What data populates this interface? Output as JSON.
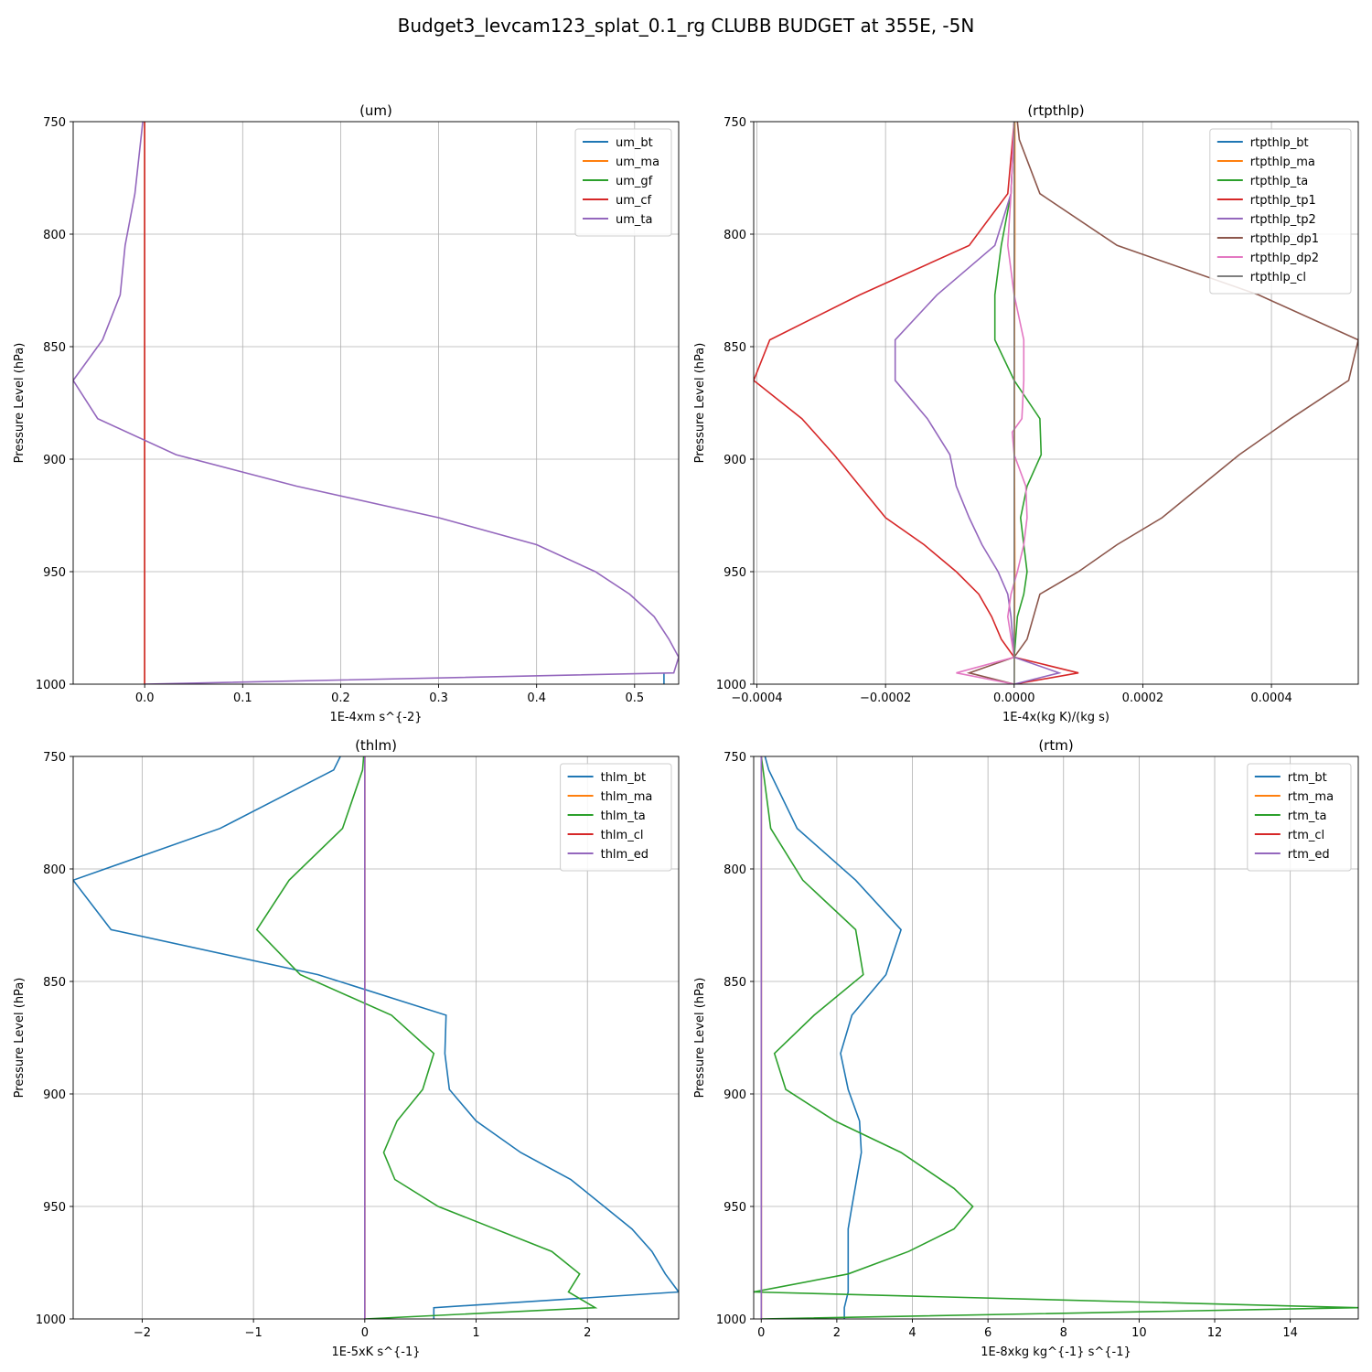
{
  "title": "Budget3_levcam123_splat_0.1_rg CLUBB BUDGET at 355E, -5N",
  "chart_data": [
    {
      "type": "line",
      "title": "(um)",
      "xlabel": "1E-4xm s^{-2}",
      "ylabel": "Pressure Level (hPa)",
      "xlim": [
        -0.073,
        0.545
      ],
      "ylim": [
        1000,
        750
      ],
      "y_inverted": true,
      "grid": true,
      "legend_position": "top-right",
      "xticks": [
        0.0,
        0.1,
        0.2,
        0.3,
        0.4,
        0.5
      ],
      "xtick_labels": [
        "0.0",
        "0.1",
        "0.2",
        "0.3",
        "0.4",
        "0.5"
      ],
      "yticks": [
        750,
        800,
        850,
        900,
        950,
        1000
      ],
      "series": [
        {
          "name": "um_bt",
          "color": "#1f77b4",
          "x": [
            0.53,
            0.53
          ],
          "y": [
            995,
            1000
          ]
        },
        {
          "name": "um_ma",
          "color": "#ff7f0e",
          "x": [
            0,
            0
          ],
          "y": [
            750,
            1000
          ]
        },
        {
          "name": "um_gf",
          "color": "#2ca02c",
          "x": [
            0,
            0
          ],
          "y": [
            750,
            1000
          ]
        },
        {
          "name": "um_cf",
          "color": "#d62728",
          "x": [
            0,
            0
          ],
          "y": [
            750,
            1000
          ]
        },
        {
          "name": "um_ta",
          "color": "#9467bd",
          "x": [
            -0.002,
            -0.01,
            -0.02,
            -0.025,
            -0.043,
            -0.073,
            -0.048,
            0.032,
            0.155,
            0.3,
            0.4,
            0.46,
            0.495,
            0.52,
            0.535,
            0.545,
            0.54,
            0.0
          ],
          "y": [
            750,
            782,
            805,
            827,
            847,
            865,
            882,
            898,
            912,
            926,
            938,
            950,
            960,
            970,
            980,
            988,
            995,
            1000
          ]
        }
      ]
    },
    {
      "type": "line",
      "title": "(rtpthlp)",
      "xlabel": "1E-4x(kg K)/(kg s)",
      "ylabel": "Pressure Level (hPa)",
      "xlim": [
        -0.000405,
        0.000535
      ],
      "ylim": [
        1000,
        750
      ],
      "y_inverted": true,
      "grid": true,
      "legend_position": "top-right",
      "xticks": [
        -0.0004,
        -0.0002,
        0.0,
        0.0002,
        0.0004
      ],
      "xtick_labels": [
        "−0.0004",
        "−0.0002",
        "0.0000",
        "0.0002",
        "0.0004"
      ],
      "yticks": [
        750,
        800,
        850,
        900,
        950,
        1000
      ],
      "series": [
        {
          "name": "rtpthlp_bt",
          "color": "#1f77b4",
          "x": [
            0,
            0
          ],
          "y": [
            750,
            1000
          ]
        },
        {
          "name": "rtpthlp_ma",
          "color": "#ff7f0e",
          "x": [
            1e-06,
            1e-06,
            5e-07,
            5e-07,
            1e-06,
            5e-07,
            0.0
          ],
          "y": [
            750,
            800,
            850,
            900,
            950,
            980,
            1000
          ]
        },
        {
          "name": "rtpthlp_ta",
          "color": "#2ca02c",
          "x": [
            0.0,
            -5e-06,
            -2e-05,
            -3e-05,
            -3e-05,
            0.0,
            4e-05,
            4.2e-05,
            2e-05,
            1e-05,
            1.5e-05,
            2e-05,
            1.5e-05,
            5e-06,
            0.0,
            0.0,
            0.0
          ],
          "y": [
            750,
            782,
            805,
            827,
            847,
            865,
            882,
            898,
            912,
            926,
            938,
            950,
            960,
            970,
            988,
            995,
            1000
          ]
        },
        {
          "name": "rtpthlp_tp1",
          "color": "#d62728",
          "x": [
            0.0,
            -1e-05,
            -7e-05,
            -0.00024,
            -0.00038,
            -0.000405,
            -0.00033,
            -0.00028,
            -0.00024,
            -0.0002,
            -0.00014,
            -9e-05,
            -5.5e-05,
            -3.5e-05,
            -2e-05,
            0.0,
            0.0001,
            0.0
          ],
          "y": [
            750,
            782,
            805,
            827,
            847,
            865,
            882,
            898,
            912,
            926,
            938,
            950,
            960,
            970,
            980,
            988,
            995,
            1000
          ]
        },
        {
          "name": "rtpthlp_tp2",
          "color": "#9467bd",
          "x": [
            0.0,
            -5e-06,
            -3e-05,
            -0.00012,
            -0.000185,
            -0.000185,
            -0.000135,
            -0.0001,
            -9e-05,
            -7e-05,
            -5e-05,
            -2.5e-05,
            -1e-05,
            -5e-06,
            0.0,
            7e-05,
            0.0
          ],
          "y": [
            750,
            782,
            805,
            827,
            847,
            865,
            882,
            898,
            912,
            926,
            938,
            950,
            960,
            970,
            988,
            995,
            1000
          ]
        },
        {
          "name": "rtpthlp_dp1",
          "color": "#8c564b",
          "x": [
            5e-06,
            8e-06,
            4e-05,
            0.00016,
            0.00038,
            0.000535,
            0.00052,
            0.00043,
            0.00035,
            0.00029,
            0.00023,
            0.00016,
            0.0001,
            4e-05,
            2e-05,
            0.0,
            -7e-05,
            0.0
          ],
          "y": [
            750,
            758,
            782,
            805,
            827,
            847,
            865,
            882,
            898,
            912,
            926,
            938,
            950,
            960,
            980,
            988,
            995,
            1000
          ]
        },
        {
          "name": "rtpthlp_dp2",
          "color": "#e377c2",
          "x": [
            0.0,
            -5e-06,
            -1e-05,
            0.0,
            1.5e-05,
            1.5e-05,
            1.2e-05,
            -3e-06,
            0.0,
            1.8e-05,
            2e-05,
            1.5e-05,
            5e-06,
            -5e-06,
            -1e-05,
            0.0,
            -9e-05,
            0.0
          ],
          "y": [
            750,
            782,
            805,
            827,
            847,
            865,
            882,
            888,
            898,
            912,
            926,
            938,
            950,
            960,
            970,
            988,
            995,
            1000
          ]
        },
        {
          "name": "rtpthlp_cl",
          "color": "#7f7f7f",
          "x": [
            0,
            0
          ],
          "y": [
            750,
            1000
          ]
        }
      ]
    },
    {
      "type": "line",
      "title": "(thlm)",
      "xlabel": "1E-5xK s^{-1}",
      "ylabel": "Pressure Level (hPa)",
      "xlim": [
        -2.62,
        2.82
      ],
      "ylim": [
        1000,
        750
      ],
      "y_inverted": true,
      "grid": true,
      "legend_position": "top-right",
      "xticks": [
        -2,
        -1,
        0,
        1,
        2
      ],
      "xtick_labels": [
        "−2",
        "−1",
        "0",
        "1",
        "2"
      ],
      "yticks": [
        750,
        800,
        850,
        900,
        950,
        1000
      ],
      "series": [
        {
          "name": "thlm_bt",
          "color": "#1f77b4",
          "x": [
            -0.22,
            -0.28,
            -1.3,
            -2.62,
            -2.28,
            -0.42,
            0.73,
            0.72,
            0.76,
            1.0,
            1.4,
            1.85,
            2.15,
            2.4,
            2.58,
            2.7,
            2.82,
            0.62,
            0.62
          ],
          "y": [
            750,
            756,
            782,
            805,
            827,
            847,
            865,
            882,
            898,
            912,
            926,
            938,
            950,
            960,
            970,
            980,
            988,
            995,
            1000
          ]
        },
        {
          "name": "thlm_ma",
          "color": "#ff7f0e",
          "x": [
            0,
            0
          ],
          "y": [
            750,
            1000
          ]
        },
        {
          "name": "thlm_ta",
          "color": "#2ca02c",
          "x": [
            -0.01,
            -0.02,
            -0.2,
            -0.68,
            -0.97,
            -0.58,
            0.24,
            0.62,
            0.52,
            0.29,
            0.17,
            0.27,
            0.66,
            1.68,
            1.93,
            1.83,
            2.07,
            0.0
          ],
          "y": [
            750,
            756,
            782,
            805,
            827,
            847,
            865,
            882,
            898,
            912,
            926,
            938,
            950,
            970,
            980,
            988,
            995,
            1000
          ]
        },
        {
          "name": "thlm_cl",
          "color": "#d62728",
          "x": [
            0,
            0
          ],
          "y": [
            750,
            1000
          ]
        },
        {
          "name": "thlm_ed",
          "color": "#9467bd",
          "x": [
            0,
            0
          ],
          "y": [
            750,
            1000
          ]
        }
      ]
    },
    {
      "type": "line",
      "title": "(rtm)",
      "xlabel": "1E-8xkg kg^{-1} s^{-1}",
      "ylabel": "Pressure Level (hPa)",
      "xlim": [
        -0.2,
        15.8
      ],
      "ylim": [
        1000,
        750
      ],
      "y_inverted": true,
      "grid": true,
      "legend_position": "top-right",
      "xticks": [
        0,
        2,
        4,
        6,
        8,
        10,
        12,
        14
      ],
      "xtick_labels": [
        "0",
        "2",
        "4",
        "6",
        "8",
        "10",
        "12",
        "14"
      ],
      "yticks": [
        750,
        800,
        850,
        900,
        950,
        1000
      ],
      "series": [
        {
          "name": "rtm_bt",
          "color": "#1f77b4",
          "x": [
            0.1,
            0.2,
            0.95,
            2.5,
            3.7,
            3.3,
            2.4,
            2.1,
            2.3,
            2.6,
            2.65,
            2.4,
            2.3,
            2.3,
            2.3,
            2.3,
            2.2,
            2.2
          ],
          "y": [
            750,
            756,
            782,
            805,
            827,
            847,
            865,
            882,
            898,
            912,
            926,
            950,
            960,
            970,
            980,
            988,
            995,
            1000
          ]
        },
        {
          "name": "rtm_ma",
          "color": "#ff7f0e",
          "x": [
            0,
            0
          ],
          "y": [
            750,
            1000
          ]
        },
        {
          "name": "rtm_ta",
          "color": "#2ca02c",
          "x": [
            0.0,
            0.05,
            0.25,
            1.1,
            2.5,
            2.7,
            1.4,
            0.35,
            0.65,
            1.95,
            3.7,
            5.1,
            5.6,
            5.1,
            3.9,
            2.3,
            -0.2,
            15.8,
            0.0
          ],
          "y": [
            750,
            756,
            782,
            805,
            827,
            847,
            865,
            882,
            898,
            912,
            926,
            942,
            950,
            960,
            970,
            980,
            988,
            995,
            1000
          ]
        },
        {
          "name": "rtm_cl",
          "color": "#d62728",
          "x": [
            0,
            0
          ],
          "y": [
            750,
            1000
          ]
        },
        {
          "name": "rtm_ed",
          "color": "#9467bd",
          "x": [
            0,
            0
          ],
          "y": [
            750,
            1000
          ]
        }
      ]
    }
  ]
}
